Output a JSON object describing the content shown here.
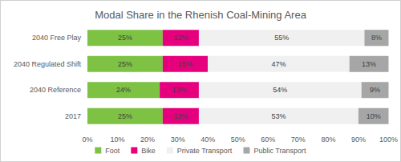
{
  "chart_data": {
    "type": "bar",
    "title": "Modal Share in the Rhenish Coal-Mining Area",
    "orientation": "horizontal",
    "stacked": true,
    "data_labels": true,
    "grid": false,
    "legend": "bottom",
    "categories": [
      "2017",
      "2040 Reference",
      "2040 Regulated Shift",
      "2040 Free Play"
    ],
    "series": [
      {
        "name": "Foot",
        "color": "#7dc242",
        "values": [
          25,
          24,
          25,
          25
        ],
        "value_labels": [
          "25%",
          "24%",
          "25%",
          "25%"
        ]
      },
      {
        "name": "Bike",
        "color": "#e6007e",
        "values": [
          12,
          13,
          15,
          12
        ],
        "value_labels": [
          "12%",
          "13%",
          "15%",
          "12%"
        ]
      },
      {
        "name": "Private Transport",
        "color": "#f0f0f0",
        "values": [
          53,
          54,
          47,
          55
        ],
        "value_labels": [
          "53%",
          "54%",
          "47%",
          "55%"
        ]
      },
      {
        "name": "Public Transport",
        "color": "#a6a6a6",
        "values": [
          10,
          9,
          13,
          8
        ],
        "value_labels": [
          "10%",
          "9%",
          "13%",
          "8%"
        ]
      }
    ],
    "xlim": [
      0,
      100
    ],
    "xticks": [
      {
        "value": 0,
        "label": "0%"
      },
      {
        "value": 10,
        "label": "10%"
      },
      {
        "value": 20,
        "label": "20%"
      },
      {
        "value": 30,
        "label": "30%"
      },
      {
        "value": 40,
        "label": "40%"
      },
      {
        "value": 50,
        "label": "50%"
      },
      {
        "value": 60,
        "label": "60%"
      },
      {
        "value": 70,
        "label": "70%"
      },
      {
        "value": 80,
        "label": "80%"
      },
      {
        "value": 90,
        "label": "90%"
      },
      {
        "value": 100,
        "label": "100%"
      }
    ]
  }
}
